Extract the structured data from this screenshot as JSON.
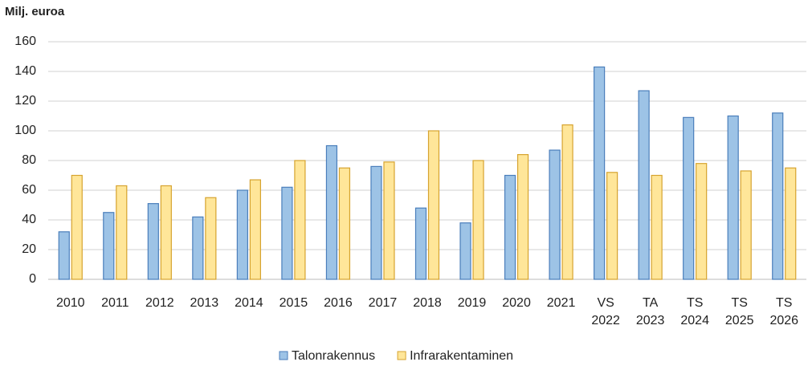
{
  "chart_data": {
    "type": "bar",
    "title": "Milj. euroa",
    "categories": [
      "2010",
      "2011",
      "2012",
      "2013",
      "2014",
      "2015",
      "2016",
      "2017",
      "2018",
      "2019",
      "2020",
      "2021",
      "VS 2022",
      "TA 2023",
      "TS 2024",
      "TS 2025",
      "TS 2026"
    ],
    "series": [
      {
        "name": "Talonrakennus",
        "color": "#9dc3e6",
        "values": [
          32,
          45,
          51,
          42,
          60,
          62,
          90,
          76,
          48,
          38,
          70,
          87,
          143,
          127,
          109,
          110,
          112
        ]
      },
      {
        "name": "Infrarakentaminen",
        "color": "#ffe699",
        "values": [
          70,
          63,
          63,
          55,
          67,
          80,
          75,
          79,
          100,
          80,
          84,
          104,
          72,
          70,
          78,
          73,
          75
        ]
      }
    ],
    "ylim": [
      0,
      160
    ],
    "yticks": [
      0,
      20,
      40,
      60,
      80,
      100,
      120,
      140,
      160
    ],
    "grid": true,
    "legend": "bottom"
  }
}
